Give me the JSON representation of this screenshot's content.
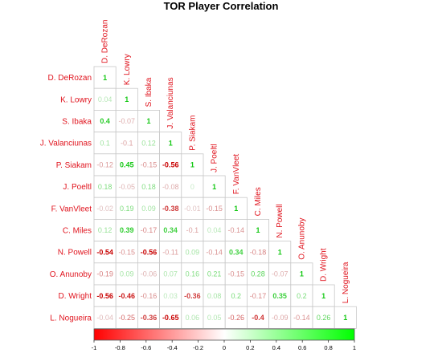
{
  "chart_data": {
    "type": "heatmap",
    "title": "TOR Player Correlation",
    "players": [
      "D. DeRozan",
      "K. Lowry",
      "S. Ibaka",
      "J. Valanciunas",
      "P. Siakam",
      "J. Poeltl",
      "F. VanVleet",
      "C. Miles",
      "N. Powell",
      "O. Anunoby",
      "D. Wright",
      "L. Nogueira"
    ],
    "value_labels": [
      [
        "1"
      ],
      [
        "0.04",
        "1"
      ],
      [
        "0.4",
        "-0.07",
        "1"
      ],
      [
        "0.1",
        "-0.1",
        "0.12",
        "1"
      ],
      [
        "-0.12",
        "0.45",
        "-0.15",
        "-0.56",
        "1"
      ],
      [
        "0.18",
        "-0.05",
        "0.18",
        "-0.08",
        "0",
        "1"
      ],
      [
        "-0.02",
        "0.19",
        "0.09",
        "-0.38",
        "-0.01",
        "-0.15",
        "1"
      ],
      [
        "0.12",
        "0.39",
        "-0.17",
        "0.34",
        "-0.1",
        "0.04",
        "-0.14",
        "1"
      ],
      [
        "-0.54",
        "-0.15",
        "-0.56",
        "-0.11",
        "0.09",
        "-0.14",
        "0.34",
        "-0.18",
        "1"
      ],
      [
        "-0.19",
        "0.09",
        "-0.06",
        "0.07",
        "0.16",
        "0.21",
        "-0.15",
        "0.28",
        "-0.07",
        "1"
      ],
      [
        "-0.56",
        "-0.46",
        "-0.16",
        "0.03",
        "-0.36",
        "0.08",
        "0.2",
        "-0.17",
        "0.35",
        "0.2",
        "1"
      ],
      [
        "-0.04",
        "-0.25",
        "-0.36",
        "-0.65",
        "0.06",
        "0.05",
        "-0.26",
        "-0.4",
        "-0.09",
        "-0.14",
        "0.26",
        "1"
      ]
    ],
    "color_scale": {
      "min": -1,
      "max": 1,
      "low": "#ff0000",
      "mid": "#ffffff",
      "high": "#00ff00"
    },
    "legend_ticks": [
      "-1",
      "-0.8",
      "-0.6",
      "-0.4",
      "-0.2",
      "0",
      "0.2",
      "0.4",
      "0.6",
      "0.8",
      "1"
    ]
  }
}
